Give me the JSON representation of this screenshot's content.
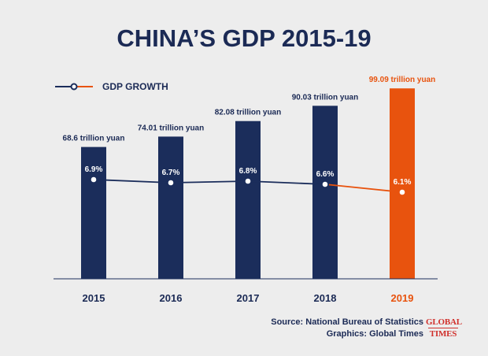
{
  "chart_data": {
    "type": "bar",
    "title": "CHINA’S GDP 2015-19",
    "categories": [
      "2015",
      "2016",
      "2017",
      "2018",
      "2019"
    ],
    "values": [
      68.6,
      74.01,
      82.08,
      90.03,
      99.09
    ],
    "value_labels": [
      "68.6 trillion yuan",
      "74.01 trillion yuan",
      "82.08 trillion yuan",
      "90.03 trillion yuan",
      "99.09 trillion yuan"
    ],
    "ylim": [
      0,
      100
    ],
    "xlabel": "",
    "ylabel": "",
    "grid": false,
    "line_series": {
      "name": "GDP GROWTH",
      "values": [
        6.9,
        6.7,
        6.8,
        6.6,
        6.1
      ],
      "labels": [
        "6.9%",
        "6.7%",
        "6.8%",
        "6.6%",
        "6.1%"
      ],
      "unit": "%"
    },
    "legend": {
      "label": "GDP GROWTH",
      "placement": "top-left"
    },
    "colors": {
      "bar": "#1b2d5b",
      "highlight": "#e8530e",
      "line": "#1b2d5b",
      "highlight_line": "#e8530e",
      "text": "#1b2a55",
      "background": "#ededed"
    },
    "highlight_index": 4
  },
  "footer": {
    "source": "Source: National Bureau of Statistics",
    "graphics": "Graphics: Global Times"
  },
  "logo": {
    "line1": "GLOBAL",
    "line2": "TIMES"
  }
}
